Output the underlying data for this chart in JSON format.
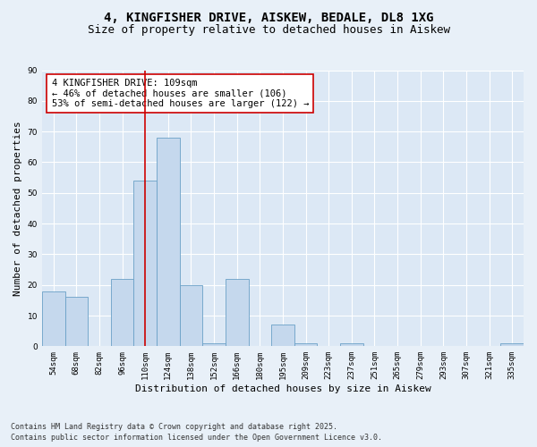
{
  "title_line1": "4, KINGFISHER DRIVE, AISKEW, BEDALE, DL8 1XG",
  "title_line2": "Size of property relative to detached houses in Aiskew",
  "xlabel": "Distribution of detached houses by size in Aiskew",
  "ylabel": "Number of detached properties",
  "footer_line1": "Contains HM Land Registry data © Crown copyright and database right 2025.",
  "footer_line2": "Contains public sector information licensed under the Open Government Licence v3.0.",
  "annotation_line1": "4 KINGFISHER DRIVE: 109sqm",
  "annotation_line2": "← 46% of detached houses are smaller (106)",
  "annotation_line3": "53% of semi-detached houses are larger (122) →",
  "bin_labels": [
    "54sqm",
    "68sqm",
    "82sqm",
    "96sqm",
    "110sqm",
    "124sqm",
    "138sqm",
    "152sqm",
    "166sqm",
    "180sqm",
    "195sqm",
    "209sqm",
    "223sqm",
    "237sqm",
    "251sqm",
    "265sqm",
    "279sqm",
    "293sqm",
    "307sqm",
    "321sqm",
    "335sqm"
  ],
  "bar_values": [
    18,
    16,
    0,
    22,
    54,
    68,
    20,
    1,
    22,
    0,
    7,
    1,
    0,
    1,
    0,
    0,
    0,
    0,
    0,
    0,
    1
  ],
  "bar_color": "#c5d8ed",
  "bar_edge_color": "#6aa0c7",
  "red_line_x": 4.5,
  "ylim": [
    0,
    90
  ],
  "yticks": [
    0,
    10,
    20,
    30,
    40,
    50,
    60,
    70,
    80,
    90
  ],
  "background_color": "#e8f0f8",
  "plot_bg_color": "#dce8f5",
  "grid_color": "#ffffff",
  "annotation_box_color": "#ffffff",
  "annotation_box_edge": "#cc0000",
  "red_line_color": "#cc0000",
  "title_fontsize": 10,
  "subtitle_fontsize": 9,
  "axis_label_fontsize": 8,
  "tick_fontsize": 6.5,
  "annotation_fontsize": 7.5,
  "footer_fontsize": 6
}
